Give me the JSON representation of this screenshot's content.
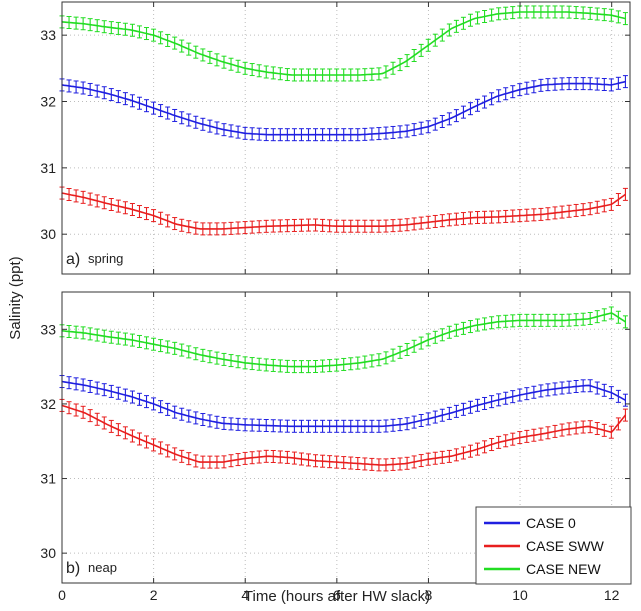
{
  "colors": {
    "case0": "#1f1fe0",
    "case_sww": "#e81e1e",
    "case_new": "#22dd22"
  },
  "ylabel": "Salinity (ppt)",
  "xlabel": "Time (hours after HW slack)",
  "legend": [
    "CASE 0",
    "CASE SWW",
    "CASE NEW"
  ],
  "chart_data": [
    {
      "type": "line",
      "panel": "a)",
      "panel_note": "spring",
      "xlim": [
        0,
        12.4
      ],
      "ylim": [
        29.4,
        33.5
      ],
      "xticks": [
        0,
        2,
        4,
        6,
        8,
        10,
        12
      ],
      "yticks": [
        30,
        31,
        32,
        33
      ],
      "grid": true,
      "x": [
        0,
        0.5,
        1,
        1.5,
        2,
        2.5,
        3,
        3.5,
        4,
        4.5,
        5,
        5.5,
        6,
        6.5,
        7,
        7.5,
        8,
        8.5,
        9,
        9.5,
        10,
        10.5,
        11,
        11.5,
        12,
        12.3
      ],
      "series": [
        {
          "name": "CASE 0",
          "values": [
            32.25,
            32.2,
            32.12,
            32.02,
            31.9,
            31.78,
            31.67,
            31.58,
            31.52,
            31.5,
            31.5,
            31.5,
            31.5,
            31.5,
            31.52,
            31.55,
            31.62,
            31.75,
            31.92,
            32.08,
            32.18,
            32.25,
            32.27,
            32.27,
            32.25,
            32.3
          ]
        },
        {
          "name": "CASE SWW",
          "values": [
            30.62,
            30.55,
            30.46,
            30.38,
            30.28,
            30.15,
            30.08,
            30.08,
            30.1,
            30.12,
            30.13,
            30.14,
            30.12,
            30.12,
            30.12,
            30.14,
            30.18,
            30.22,
            30.25,
            30.26,
            30.28,
            30.3,
            30.34,
            30.38,
            30.45,
            30.6
          ]
        },
        {
          "name": "CASE NEW",
          "values": [
            33.2,
            33.17,
            33.12,
            33.08,
            33.0,
            32.87,
            32.72,
            32.6,
            32.5,
            32.44,
            32.4,
            32.4,
            32.4,
            32.4,
            32.42,
            32.6,
            32.85,
            33.1,
            33.25,
            33.32,
            33.35,
            33.35,
            33.35,
            33.33,
            33.3,
            33.25
          ]
        }
      ]
    },
    {
      "type": "line",
      "panel": "b)",
      "panel_note": "neap",
      "xlim": [
        0,
        12.4
      ],
      "ylim": [
        29.6,
        33.5
      ],
      "xticks": [
        0,
        2,
        4,
        6,
        8,
        10,
        12
      ],
      "yticks": [
        30,
        31,
        32,
        33
      ],
      "grid": true,
      "legend_position": "bottom-right",
      "x": [
        0,
        0.5,
        1,
        1.5,
        2,
        2.5,
        3,
        3.5,
        4,
        4.5,
        5,
        5.5,
        6,
        6.5,
        7,
        7.5,
        8,
        8.5,
        9,
        9.5,
        10,
        10.5,
        11,
        11.5,
        12,
        12.3
      ],
      "series": [
        {
          "name": "CASE 0",
          "values": [
            32.3,
            32.25,
            32.18,
            32.1,
            32.0,
            31.88,
            31.8,
            31.74,
            31.72,
            31.71,
            31.7,
            31.7,
            31.7,
            31.7,
            31.7,
            31.73,
            31.8,
            31.88,
            31.97,
            32.05,
            32.12,
            32.18,
            32.22,
            32.25,
            32.15,
            32.05
          ]
        },
        {
          "name": "CASE SWW",
          "values": [
            31.98,
            31.88,
            31.72,
            31.58,
            31.45,
            31.32,
            31.22,
            31.22,
            31.27,
            31.3,
            31.28,
            31.24,
            31.22,
            31.2,
            31.18,
            31.2,
            31.26,
            31.3,
            31.38,
            31.48,
            31.55,
            31.6,
            31.66,
            31.7,
            31.62,
            31.85
          ]
        },
        {
          "name": "CASE NEW",
          "values": [
            32.98,
            32.95,
            32.9,
            32.86,
            32.8,
            32.74,
            32.66,
            32.6,
            32.55,
            32.52,
            32.5,
            32.5,
            32.52,
            32.55,
            32.6,
            32.72,
            32.86,
            32.97,
            33.05,
            33.1,
            33.12,
            33.12,
            33.12,
            33.14,
            33.22,
            33.1
          ]
        }
      ]
    }
  ]
}
